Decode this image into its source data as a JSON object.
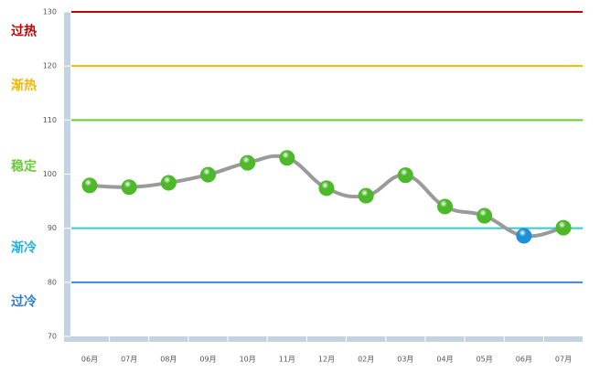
{
  "chart_data": {
    "type": "line",
    "categories": [
      "06月",
      "07月",
      "08月",
      "09月",
      "10月",
      "11月",
      "12月",
      "02月",
      "03月",
      "04月",
      "05月",
      "06月",
      "07月"
    ],
    "series": [
      {
        "color": "#9a9a9a",
        "values": [
          97.9,
          97.6,
          98.4,
          99.9,
          102.1,
          103.0,
          97.4,
          96.0,
          99.8,
          94.0,
          92.3,
          88.6,
          90.1
        ],
        "point_colors": [
          "#4cb82a",
          "#4cb82a",
          "#4cb82a",
          "#4cb82a",
          "#4cb82a",
          "#4cb82a",
          "#4cb82a",
          "#4cb82a",
          "#4cb82a",
          "#4cb82a",
          "#4cb82a",
          "#1f8fd6",
          "#4cb82a"
        ]
      }
    ],
    "ylim": [
      70,
      130
    ],
    "yticks": [
      70,
      80,
      90,
      100,
      110,
      120,
      130
    ],
    "reference_lines": [
      {
        "value": 130,
        "color": "#c00000"
      },
      {
        "value": 120,
        "color": "#f2b800"
      },
      {
        "value": 110,
        "color": "#66cc33"
      },
      {
        "value": 90,
        "color": "#33cccc"
      },
      {
        "value": 80,
        "color": "#3a8ad4"
      }
    ],
    "zones": [
      {
        "label": "过热",
        "color": "#c00000"
      },
      {
        "label": "渐热",
        "color": "#f2b800"
      },
      {
        "label": "稳定",
        "color": "#66cc33"
      },
      {
        "label": "渐冷",
        "color": "#1fb0e0"
      },
      {
        "label": "过冷",
        "color": "#2f7cc4"
      }
    ]
  }
}
